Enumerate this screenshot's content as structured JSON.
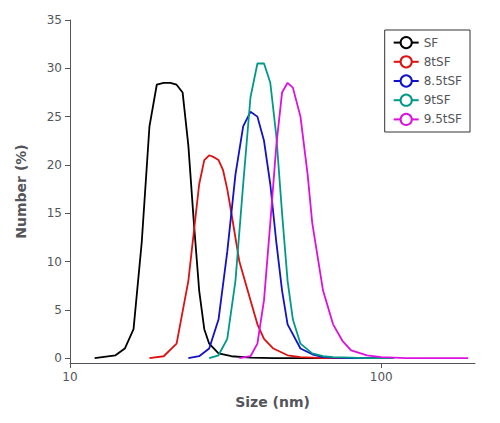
{
  "chart_data": {
    "type": "line",
    "xlabel": "Size (nm)",
    "ylabel": "Number (%)",
    "log": "x",
    "xlim": [
      10,
      200
    ],
    "xticks": [
      10,
      100
    ],
    "ylim": [
      -0.5,
      35
    ],
    "yticks": [
      0,
      5,
      10,
      15,
      20,
      25,
      30,
      35
    ],
    "grid": false,
    "legend": "upper right",
    "series": [
      {
        "name": "SF",
        "color": "black",
        "x": [
          12,
          14,
          15,
          16,
          17,
          18,
          19,
          20,
          21,
          22,
          23,
          24,
          25,
          26,
          27,
          28,
          30,
          33,
          38,
          45,
          60,
          80
        ],
        "values": [
          0,
          0.3,
          1.0,
          3.0,
          12.0,
          24.0,
          28.3,
          28.5,
          28.5,
          28.3,
          27.5,
          22.0,
          14.0,
          7.0,
          3.0,
          1.5,
          0.5,
          0.2,
          0.05,
          0,
          0,
          0
        ]
      },
      {
        "name": "8tSF",
        "color": "#dd1111",
        "x": [
          18,
          20,
          22,
          24,
          26,
          27,
          28,
          29,
          30,
          31,
          32,
          33,
          35,
          38,
          40,
          42,
          45,
          50,
          55,
          60,
          65,
          70,
          80,
          100
        ],
        "values": [
          0,
          0.2,
          1.5,
          8.0,
          18.0,
          20.5,
          21.0,
          20.8,
          20.5,
          19.5,
          17.5,
          15.0,
          10.0,
          6.0,
          3.5,
          2.0,
          1.0,
          0.3,
          0.1,
          0.05,
          0,
          0,
          0,
          0
        ]
      },
      {
        "name": "8.5tSF",
        "color": "#1111cc",
        "x": [
          24,
          26,
          28,
          30,
          32,
          34,
          36,
          38,
          40,
          42,
          44,
          46,
          48,
          50,
          55,
          60,
          65,
          70,
          80,
          100
        ],
        "values": [
          0,
          0.2,
          1.0,
          4.0,
          11.0,
          19.0,
          24.0,
          25.5,
          25.0,
          22.5,
          18.0,
          12.0,
          7.0,
          3.5,
          1.0,
          0.4,
          0.1,
          0.05,
          0,
          0
        ]
      },
      {
        "name": "9tSF",
        "color": "#009988",
        "x": [
          28,
          30,
          32,
          34,
          36,
          38,
          40,
          42,
          44,
          46,
          48,
          50,
          52,
          55,
          60,
          65,
          70,
          80,
          90,
          100,
          110
        ],
        "values": [
          0,
          0.3,
          2.0,
          8.0,
          18.0,
          27.0,
          30.5,
          30.5,
          28.5,
          23.0,
          15.0,
          8.0,
          4.0,
          1.5,
          0.5,
          0.2,
          0.1,
          0.05,
          0,
          0,
          0
        ]
      },
      {
        "name": "9.5tSF",
        "color": "#dd11dd",
        "x": [
          35,
          38,
          40,
          42,
          44,
          46,
          48,
          50,
          52,
          55,
          58,
          60,
          65,
          70,
          75,
          80,
          90,
          100,
          110,
          120,
          140,
          160,
          190
        ],
        "values": [
          0,
          0.2,
          1.5,
          6.0,
          14.0,
          22.0,
          27.5,
          28.5,
          28.0,
          25.0,
          19.0,
          14.0,
          7.0,
          3.5,
          1.8,
          0.8,
          0.3,
          0.1,
          0.05,
          0,
          0,
          0,
          0
        ]
      }
    ]
  }
}
